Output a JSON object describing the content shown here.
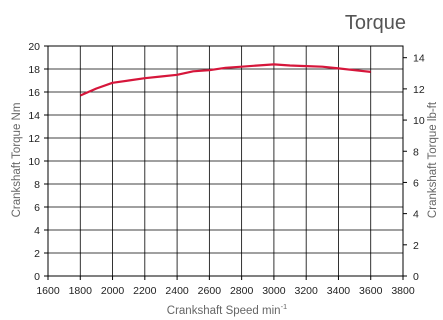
{
  "chart_data": {
    "type": "line",
    "title": "Torque",
    "xlabel": "Crankshaft Speed min",
    "xlabel_superscript": "-1",
    "ylabel": "Crankshaft Torque Nm",
    "y2label": "Crankshaft Torque lb-ft",
    "xlim": [
      1600,
      3800
    ],
    "ylim": [
      0,
      20
    ],
    "y2lim": [
      0,
      14.75
    ],
    "x_ticks": [
      1600,
      1800,
      2000,
      2200,
      2400,
      2600,
      2800,
      3000,
      3200,
      3400,
      3600,
      3800
    ],
    "y_ticks": [
      0,
      2,
      4,
      6,
      8,
      10,
      12,
      14,
      16,
      18,
      20
    ],
    "y2_ticks": [
      0,
      2,
      4,
      6,
      8,
      10,
      12,
      14
    ],
    "grid": true,
    "line_color": "#d6163b",
    "series": [
      {
        "x": [
          1800,
          1900,
          2000,
          2100,
          2200,
          2300,
          2400,
          2500,
          2600,
          2700,
          2800,
          2900,
          3000,
          3100,
          3200,
          3300,
          3400,
          3500,
          3600
        ],
        "y": [
          15.7,
          16.3,
          16.8,
          17.0,
          17.2,
          17.35,
          17.5,
          17.8,
          17.9,
          18.1,
          18.2,
          18.3,
          18.4,
          18.3,
          18.25,
          18.2,
          18.05,
          17.9,
          17.75
        ]
      }
    ]
  }
}
